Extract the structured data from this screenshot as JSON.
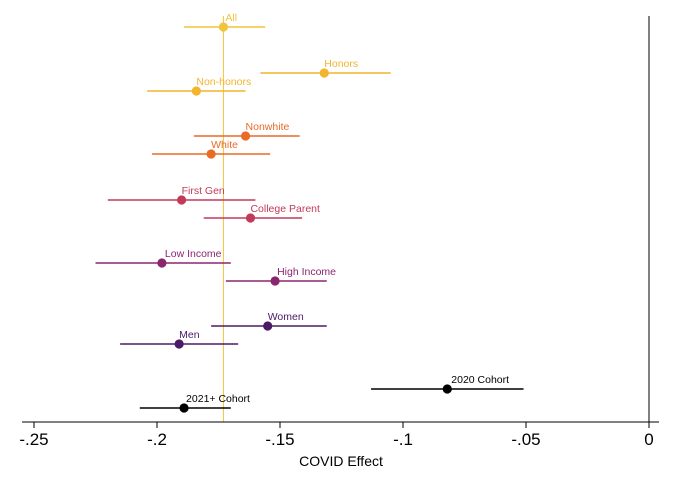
{
  "chart_data": {
    "type": "scatter",
    "subtype": "coefficient-plot-with-confidence-intervals",
    "title": "",
    "xlabel": "COVID Effect",
    "ylabel": "",
    "xlim": [
      -0.255,
      0.005
    ],
    "xticks": [
      -0.25,
      -0.2,
      -0.15,
      -0.1,
      -0.05,
      0
    ],
    "xtick_labels": [
      "-.25",
      "-.2",
      "-.15",
      "-.1",
      "-.05",
      "0"
    ],
    "reference_lines": [
      {
        "x": 0,
        "color": "#000000"
      },
      {
        "x": -0.173,
        "color": "#f3c33c",
        "note": "estimate for All"
      }
    ],
    "grid": false,
    "legend": "none",
    "points": [
      {
        "label": "All",
        "estimate": -0.173,
        "ci": [
          -0.189,
          -0.156
        ],
        "color": "#f3c33c"
      },
      {
        "label": "Honors",
        "estimate": -0.132,
        "ci": [
          -0.158,
          -0.105
        ],
        "color": "#f3b42e"
      },
      {
        "label": "Non-honors",
        "estimate": -0.184,
        "ci": [
          -0.204,
          -0.164
        ],
        "color": "#f3b42e"
      },
      {
        "label": "Nonwhite",
        "estimate": -0.164,
        "ci": [
          -0.185,
          -0.142
        ],
        "color": "#e86b26"
      },
      {
        "label": "White",
        "estimate": -0.178,
        "ci": [
          -0.202,
          -0.154
        ],
        "color": "#e86b26"
      },
      {
        "label": "First Gen",
        "estimate": -0.19,
        "ci": [
          -0.22,
          -0.16
        ],
        "color": "#c23a5a"
      },
      {
        "label": "College Parent",
        "estimate": -0.162,
        "ci": [
          -0.181,
          -0.141
        ],
        "color": "#c23a5a"
      },
      {
        "label": "Low Income",
        "estimate": -0.198,
        "ci": [
          -0.225,
          -0.17
        ],
        "color": "#8a2670"
      },
      {
        "label": "High Income",
        "estimate": -0.152,
        "ci": [
          -0.172,
          -0.131
        ],
        "color": "#8a2670"
      },
      {
        "label": "Women",
        "estimate": -0.155,
        "ci": [
          -0.178,
          -0.131
        ],
        "color": "#4b1a66"
      },
      {
        "label": "Men",
        "estimate": -0.191,
        "ci": [
          -0.215,
          -0.167
        ],
        "color": "#4b1a66"
      },
      {
        "label": "2020 Cohort",
        "estimate": -0.082,
        "ci": [
          -0.113,
          -0.051
        ],
        "color": "#000000"
      },
      {
        "label": "2021+ Cohort",
        "estimate": -0.189,
        "ci": [
          -0.207,
          -0.17
        ],
        "color": "#000000"
      }
    ]
  }
}
